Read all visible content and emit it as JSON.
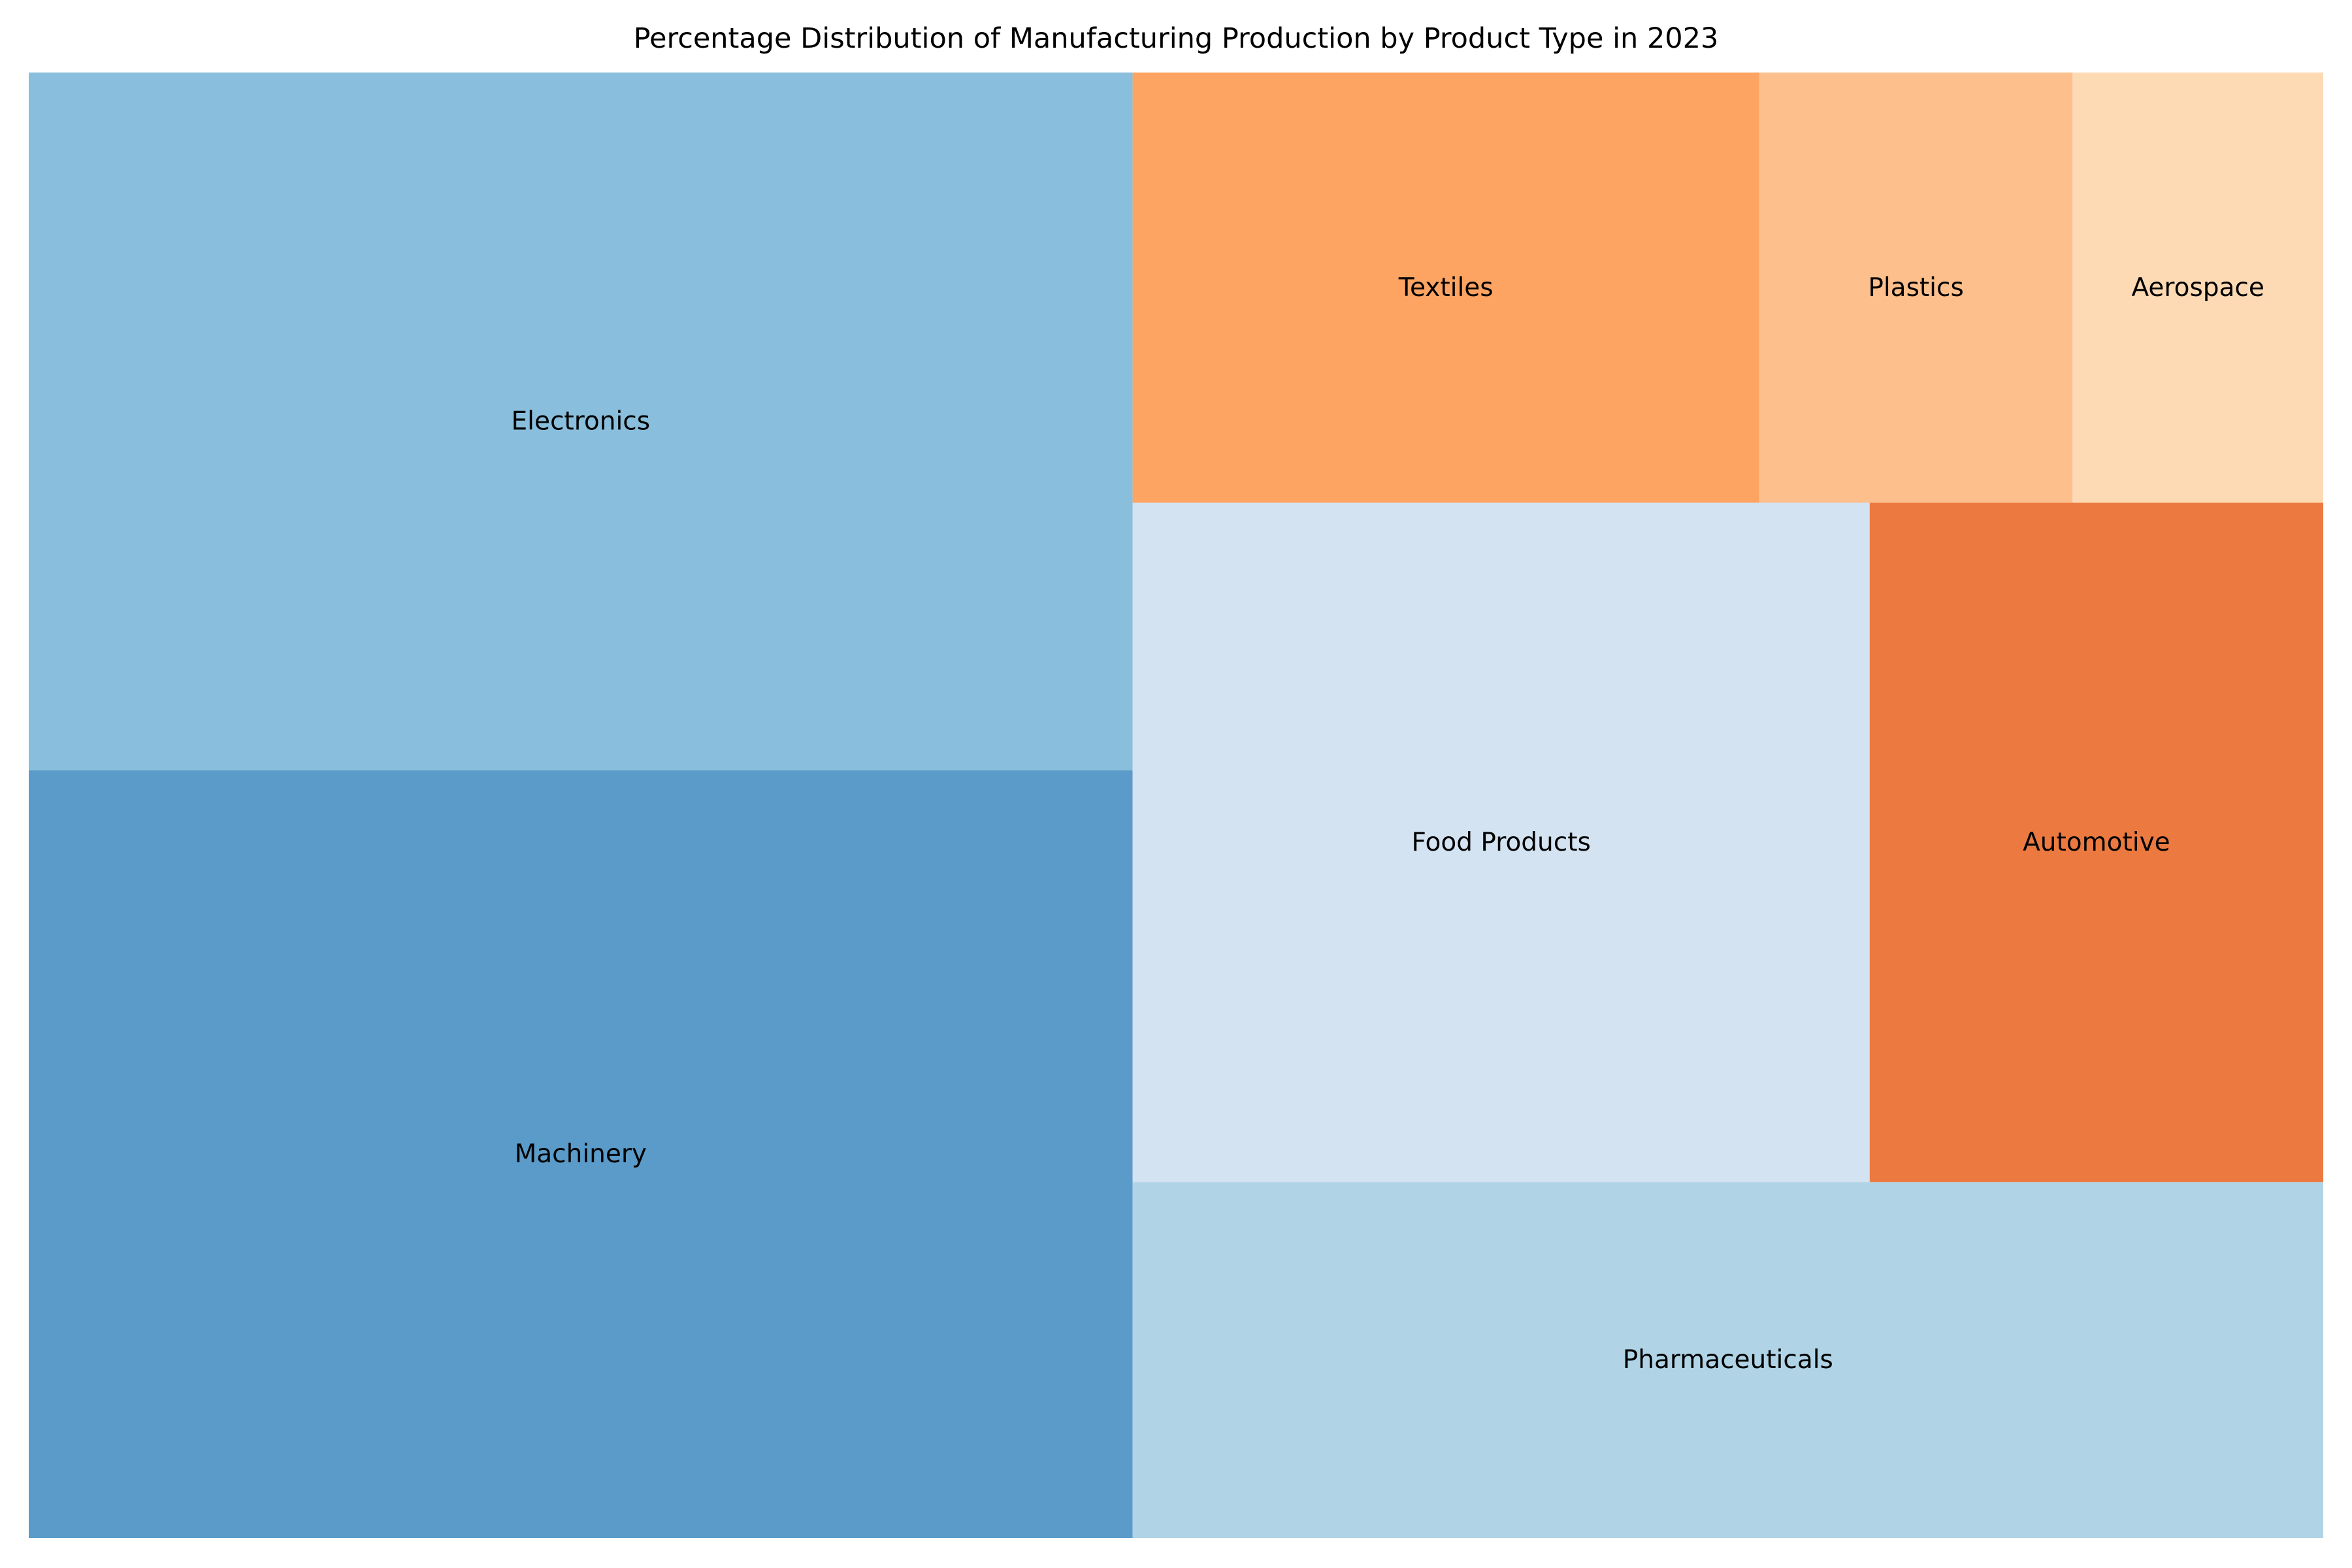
{
  "chart_data": {
    "type": "treemap",
    "title": "Percentage Distribution of Manufacturing Production by Product Type in 2023",
    "unit": "%",
    "items": [
      {
        "name": "Electronics",
        "value": 20,
        "color": "#89bedc"
      },
      {
        "name": "Machinery",
        "value": 22,
        "color": "#5b9bc9"
      },
      {
        "name": "Pharmaceuticals",
        "value": 11,
        "color": "#b0d3e6"
      },
      {
        "name": "Food Products",
        "value": 13,
        "color": "#d3e3f2"
      },
      {
        "name": "Automotive",
        "value": 8,
        "color": "#ec7a40"
      },
      {
        "name": "Textiles",
        "value": 7,
        "color": "#fda463"
      },
      {
        "name": "Plastics",
        "value": 3.5,
        "color": "#fdbf8b"
      },
      {
        "name": "Aerospace",
        "value": 2.8,
        "color": "#fddab4"
      }
    ]
  }
}
